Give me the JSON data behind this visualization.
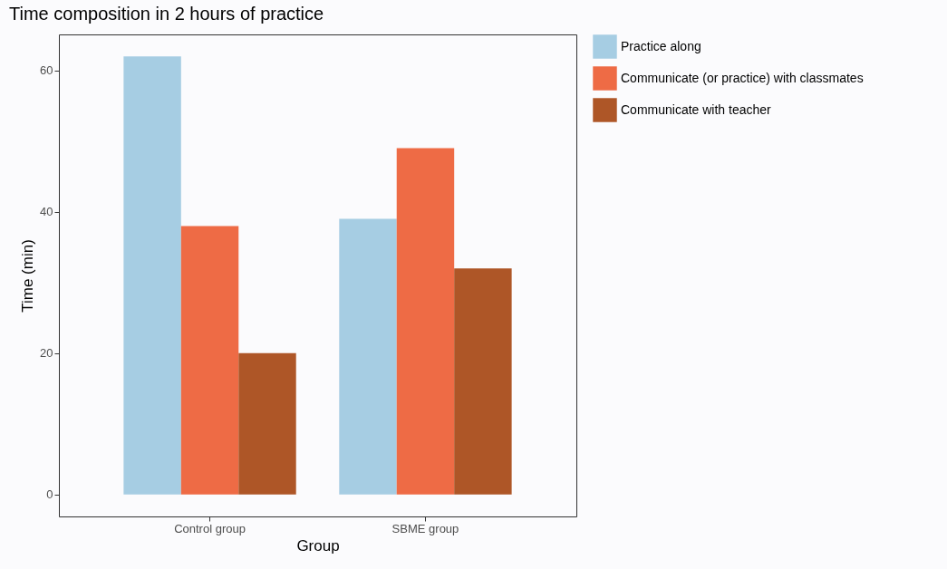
{
  "chart_data": {
    "type": "bar",
    "title": "Time composition in 2 hours of practice",
    "xlabel": "Group",
    "ylabel": "Time (min)",
    "categories": [
      "Control group",
      "SBME group"
    ],
    "series": [
      {
        "name": "Practice along",
        "color": "#a6cde3",
        "values": [
          62,
          39
        ]
      },
      {
        "name": "Communicate (or practice) with classmates",
        "color": "#ee6b45",
        "values": [
          38,
          49
        ]
      },
      {
        "name": "Communicate with teacher",
        "color": "#ae5627",
        "values": [
          20,
          32
        ]
      }
    ],
    "ylim": [
      -3.1,
      65.1
    ],
    "yticks": [
      0,
      20,
      40,
      60
    ],
    "grid": false,
    "legend": "right"
  }
}
